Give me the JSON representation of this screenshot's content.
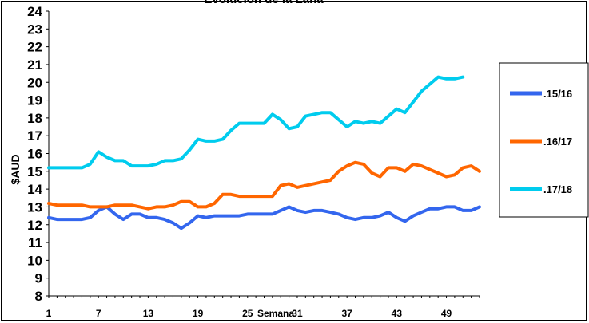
{
  "chart_data": {
    "type": "line",
    "title": "Evolución de la Lana",
    "xlabel": "Semana",
    "ylabel": "$AUD",
    "x": [
      1,
      2,
      3,
      4,
      5,
      6,
      7,
      8,
      9,
      10,
      11,
      12,
      13,
      14,
      15,
      16,
      17,
      18,
      19,
      20,
      21,
      22,
      23,
      24,
      25,
      26,
      27,
      28,
      29,
      30,
      31,
      32,
      33,
      34,
      35,
      36,
      37,
      38,
      39,
      40,
      41,
      42,
      43,
      44,
      45,
      46,
      47,
      48,
      49,
      50,
      51,
      52,
      53
    ],
    "x_ticks": [
      "1",
      "7",
      "13",
      "19",
      "25",
      "31",
      "37",
      "43",
      "49"
    ],
    "y_ticks": [
      "8",
      "9",
      "10",
      "11",
      "12",
      "13",
      "14",
      "15",
      "16",
      "17",
      "18",
      "19",
      "20",
      "21",
      "22",
      "23",
      "24"
    ],
    "ylim": [
      8,
      24
    ],
    "xlim": [
      1,
      53
    ],
    "grid": false,
    "legend_position": "right",
    "series": [
      {
        "name": ".15/16",
        "color": "#3366ee",
        "values": [
          12.4,
          12.3,
          12.3,
          12.3,
          12.3,
          12.4,
          12.8,
          13.0,
          12.6,
          12.3,
          12.6,
          12.6,
          12.4,
          12.4,
          12.3,
          12.1,
          11.8,
          12.1,
          12.5,
          12.4,
          12.5,
          12.5,
          12.5,
          12.5,
          12.6,
          12.6,
          12.6,
          12.6,
          12.8,
          13.0,
          12.8,
          12.7,
          12.8,
          12.8,
          12.7,
          12.6,
          12.4,
          12.3,
          12.4,
          12.4,
          12.5,
          12.7,
          12.4,
          12.2,
          12.5,
          12.7,
          12.9,
          12.9,
          13.0,
          13.0,
          12.8,
          12.8,
          13.0
        ]
      },
      {
        "name": ".16/17",
        "color": "#ff6600",
        "values": [
          13.2,
          13.1,
          13.1,
          13.1,
          13.1,
          13.0,
          13.0,
          13.0,
          13.1,
          13.1,
          13.1,
          13.0,
          12.9,
          13.0,
          13.0,
          13.1,
          13.3,
          13.3,
          13.0,
          13.0,
          13.2,
          13.7,
          13.7,
          13.6,
          13.6,
          13.6,
          13.6,
          13.6,
          14.2,
          14.3,
          14.1,
          14.2,
          14.3,
          14.4,
          14.5,
          15.0,
          15.3,
          15.5,
          15.4,
          14.9,
          14.7,
          15.2,
          15.2,
          15.0,
          15.4,
          15.3,
          15.1,
          14.9,
          14.7,
          14.8,
          15.2,
          15.3,
          15.0
        ]
      },
      {
        "name": ".17/18",
        "color": "#00ccee",
        "values": [
          15.2,
          15.2,
          15.2,
          15.2,
          15.2,
          15.4,
          16.1,
          15.8,
          15.6,
          15.6,
          15.3,
          15.3,
          15.3,
          15.4,
          15.6,
          15.6,
          15.7,
          16.2,
          16.8,
          16.7,
          16.7,
          16.8,
          17.3,
          17.7,
          17.7,
          17.7,
          17.7,
          18.2,
          17.9,
          17.4,
          17.5,
          18.1,
          18.2,
          18.3,
          18.3,
          17.9,
          17.5,
          17.8,
          17.7,
          17.8,
          17.7,
          18.1,
          18.5,
          18.3,
          18.9,
          19.5,
          19.9,
          20.3,
          20.2,
          20.2,
          20.3,
          null,
          null
        ]
      }
    ]
  }
}
